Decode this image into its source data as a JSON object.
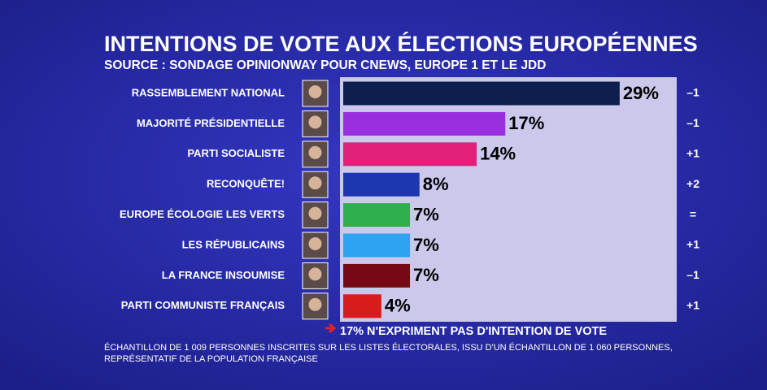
{
  "chart_data": {
    "type": "bar",
    "orientation": "horizontal",
    "title": "INTENTIONS DE VOTE AUX ÉLECTIONS EUROPÉENNES",
    "subtitle": "SOURCE : SONDAGE OPINIONWAY POUR CNEWS, EUROPE 1 ET LE JDD",
    "categories": [
      "RASSEMBLEMENT NATIONAL",
      "MAJORITÉ PRÉSIDENTIELLE",
      "PARTI SOCIALISTE",
      "RECONQUÊTE!",
      "EUROPE ÉCOLOGIE LES VERTS",
      "LES RÉPUBLICAINS",
      "LA FRANCE INSOUMISE",
      "PARTI COMMUNISTE FRANÇAIS"
    ],
    "values": [
      29,
      17,
      14,
      8,
      7,
      7,
      7,
      4
    ],
    "value_labels": [
      "29%",
      "17%",
      "14%",
      "8%",
      "7%",
      "7%",
      "7%",
      "4%"
    ],
    "colors": [
      "#0e1f4d",
      "#9a2fe0",
      "#e0207a",
      "#1c37b0",
      "#2fae4c",
      "#2ea3f2",
      "#750a16",
      "#d81c1c"
    ],
    "changes": [
      "–1",
      "–1",
      "+1",
      "+2",
      "=",
      "+1",
      "–1",
      "+1"
    ],
    "note": "17% N'EXPRIMENT PAS D'INTENTION DE VOTE",
    "footnote": [
      "ÉCHANTILLON DE 1 009 PERSONNES INSCRITES SUR LES LISTES ÉLECTORALES, ISSU D'UN ÉCHANTILLON DE 1 060 PERSONNES,",
      "REPRÉSENTATIF DE LA POPULATION FRANÇAISE"
    ]
  }
}
